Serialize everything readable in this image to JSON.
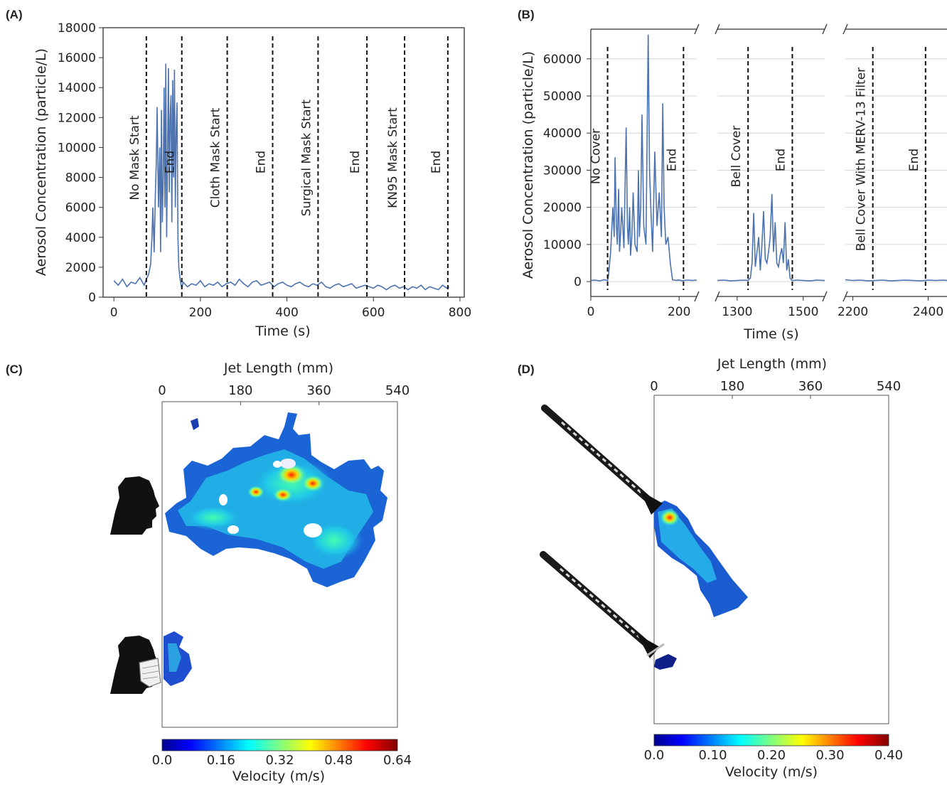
{
  "panels": {
    "a": {
      "label": "(A)"
    },
    "b": {
      "label": "(B)"
    },
    "c": {
      "label": "(C)"
    },
    "d": {
      "label": "(D)"
    }
  },
  "chart_data": [
    {
      "id": "A",
      "type": "line",
      "xlabel": "Time (s)",
      "ylabel": "Aerosol Concentration (particle/L)",
      "xlim": [
        -25,
        810
      ],
      "ylim": [
        0,
        18000
      ],
      "xticks": [
        0,
        200,
        400,
        600,
        800
      ],
      "yticks": [
        0,
        2000,
        4000,
        6000,
        8000,
        10000,
        12000,
        14000,
        16000,
        18000
      ],
      "line_color": "#4c72b0",
      "events": [
        {
          "x": 75,
          "label": "No Mask Start"
        },
        {
          "x": 157,
          "label": "End"
        },
        {
          "x": 262,
          "label": "Cloth Mask Start"
        },
        {
          "x": 367,
          "label": "End"
        },
        {
          "x": 472,
          "label": "Surgical Mask Start"
        },
        {
          "x": 585,
          "label": "End"
        },
        {
          "x": 672,
          "label": "KN95 Mask Start"
        },
        {
          "x": 772,
          "label": "End"
        }
      ],
      "series": [
        {
          "x": [
            0,
            10,
            20,
            30,
            40,
            50,
            60,
            70,
            75,
            80,
            85,
            88,
            90,
            93,
            96,
            98,
            100,
            103,
            106,
            108,
            110,
            112,
            114,
            116,
            118,
            120,
            122,
            124,
            126,
            128,
            130,
            132,
            134,
            136,
            138,
            140,
            142,
            144,
            146,
            148,
            150,
            153,
            157,
            160,
            170,
            180,
            190,
            200,
            210,
            220,
            230,
            240,
            250,
            260,
            270,
            280,
            290,
            300,
            310,
            320,
            330,
            340,
            350,
            360,
            370,
            380,
            390,
            400,
            410,
            420,
            430,
            440,
            450,
            460,
            470,
            480,
            490,
            500,
            510,
            520,
            530,
            540,
            550,
            560,
            570,
            580,
            590,
            600,
            610,
            620,
            630,
            640,
            650,
            660,
            670,
            680,
            690,
            700,
            710,
            720,
            730,
            740,
            750,
            760,
            770,
            775
          ],
          "y": [
            1100,
            800,
            1200,
            700,
            1000,
            900,
            1300,
            800,
            1200,
            1500,
            2200,
            4000,
            6000,
            3000,
            7000,
            9000,
            12700,
            6000,
            10000,
            3000,
            12500,
            5000,
            8000,
            14000,
            6000,
            15600,
            4000,
            9000,
            15300,
            7000,
            12000,
            13500,
            5000,
            14500,
            8000,
            15200,
            6000,
            11000,
            13000,
            4000,
            2000,
            1200,
            600,
            1000,
            700,
            900,
            800,
            1100,
            700,
            900,
            800,
            1000,
            700,
            900,
            1000,
            800,
            1200,
            900,
            700,
            1000,
            1100,
            800,
            900,
            1000,
            700,
            900,
            1000,
            800,
            700,
            900,
            1000,
            800,
            700,
            900,
            800,
            1000,
            700,
            600,
            800,
            900,
            700,
            800,
            900,
            600,
            700,
            800,
            700,
            600,
            800,
            700,
            500,
            700,
            800,
            600,
            700,
            500,
            700,
            600,
            800,
            500,
            700,
            600,
            500,
            800,
            600,
            700
          ]
        }
      ]
    },
    {
      "id": "B",
      "type": "line",
      "xlabel": "Time (s)",
      "ylabel": "Aerosol Concentration (particle/L)",
      "ylim": [
        -4000,
        68000
      ],
      "yticks": [
        0,
        10000,
        20000,
        30000,
        40000,
        50000,
        60000
      ],
      "broken_x_axis": true,
      "line_color": "#4c72b0",
      "segments": [
        {
          "xlim": [
            0,
            240
          ],
          "xticks": [
            0,
            200
          ],
          "events": [
            {
              "x": 38,
              "label": "No Cover"
            },
            {
              "x": 210,
              "label": "End"
            }
          ],
          "x": [
            0,
            10,
            20,
            30,
            38,
            40,
            45,
            50,
            53,
            55,
            58,
            60,
            63,
            65,
            68,
            70,
            75,
            80,
            83,
            85,
            88,
            90,
            93,
            96,
            100,
            105,
            108,
            110,
            113,
            116,
            120,
            125,
            130,
            133,
            136,
            140,
            145,
            150,
            155,
            160,
            163,
            166,
            170,
            175,
            180,
            185,
            190,
            195,
            198,
            200,
            203,
            206,
            210,
            220,
            230,
            240
          ],
          "y": [
            300,
            400,
            200,
            500,
            300,
            1500,
            8000,
            20000,
            12000,
            33500,
            15000,
            10000,
            25000,
            8000,
            14000,
            20000,
            9000,
            41500,
            15000,
            10000,
            20000,
            7000,
            12000,
            24000,
            10000,
            8000,
            30000,
            12000,
            20000,
            45000,
            15000,
            10000,
            66500,
            30000,
            20000,
            8000,
            35000,
            15000,
            24000,
            12000,
            48000,
            20000,
            10000,
            12000,
            5000,
            500,
            400,
            300,
            500,
            300,
            400,
            200,
            300,
            400,
            300,
            400
          ]
        },
        {
          "xlim": [
            1240,
            1565
          ],
          "xticks": [
            1300,
            1500
          ],
          "events": [
            {
              "x": 1333,
              "label": "Bell Cover"
            },
            {
              "x": 1467,
              "label": "End"
            }
          ],
          "x": [
            1240,
            1260,
            1280,
            1300,
            1320,
            1333,
            1340,
            1345,
            1350,
            1355,
            1360,
            1365,
            1370,
            1375,
            1380,
            1385,
            1390,
            1395,
            1400,
            1405,
            1410,
            1415,
            1420,
            1425,
            1430,
            1435,
            1440,
            1445,
            1450,
            1455,
            1460,
            1465,
            1470,
            1480,
            1500,
            1520,
            1540,
            1565
          ],
          "y": [
            300,
            400,
            200,
            300,
            400,
            300,
            1000,
            5000,
            18500,
            4000,
            8000,
            12000,
            3000,
            10000,
            19000,
            6000,
            5000,
            8000,
            12000,
            23600,
            8000,
            16000,
            5000,
            4000,
            7000,
            9000,
            5000,
            16000,
            3000,
            6000,
            1000,
            400,
            300,
            400,
            300,
            200,
            400,
            300
          ]
        },
        {
          "xlim": [
            2180,
            2450
          ],
          "xticks": [
            2200,
            2400
          ],
          "events": [
            {
              "x": 2253,
              "label": "Bell Cover With MERV-13 Filter"
            },
            {
              "x": 2393,
              "label": "End"
            }
          ],
          "x": [
            2180,
            2200,
            2220,
            2240,
            2260,
            2280,
            2300,
            2320,
            2340,
            2360,
            2380,
            2400,
            2420,
            2440,
            2450
          ],
          "y": [
            500,
            300,
            400,
            200,
            300,
            400,
            200,
            300,
            400,
            300,
            200,
            400,
            300,
            400,
            300
          ]
        }
      ]
    },
    {
      "id": "C",
      "type": "heatmap",
      "xlabel": "Jet Length (mm)",
      "xticks": [
        0,
        180,
        360,
        540
      ],
      "colorbar": {
        "label": "Velocity (m/s)",
        "ticks": [
          "0.0",
          "0.16",
          "0.32",
          "0.48",
          "0.64"
        ],
        "range": [
          0,
          0.64
        ]
      }
    },
    {
      "id": "D",
      "type": "heatmap",
      "xlabel": "Jet Length (mm)",
      "xticks": [
        0,
        180,
        360,
        540
      ],
      "colorbar": {
        "label": "Velocity (m/s)",
        "ticks": [
          "0.0",
          "0.10",
          "0.20",
          "0.30",
          "0.40"
        ],
        "range": [
          0,
          0.4
        ]
      }
    }
  ]
}
